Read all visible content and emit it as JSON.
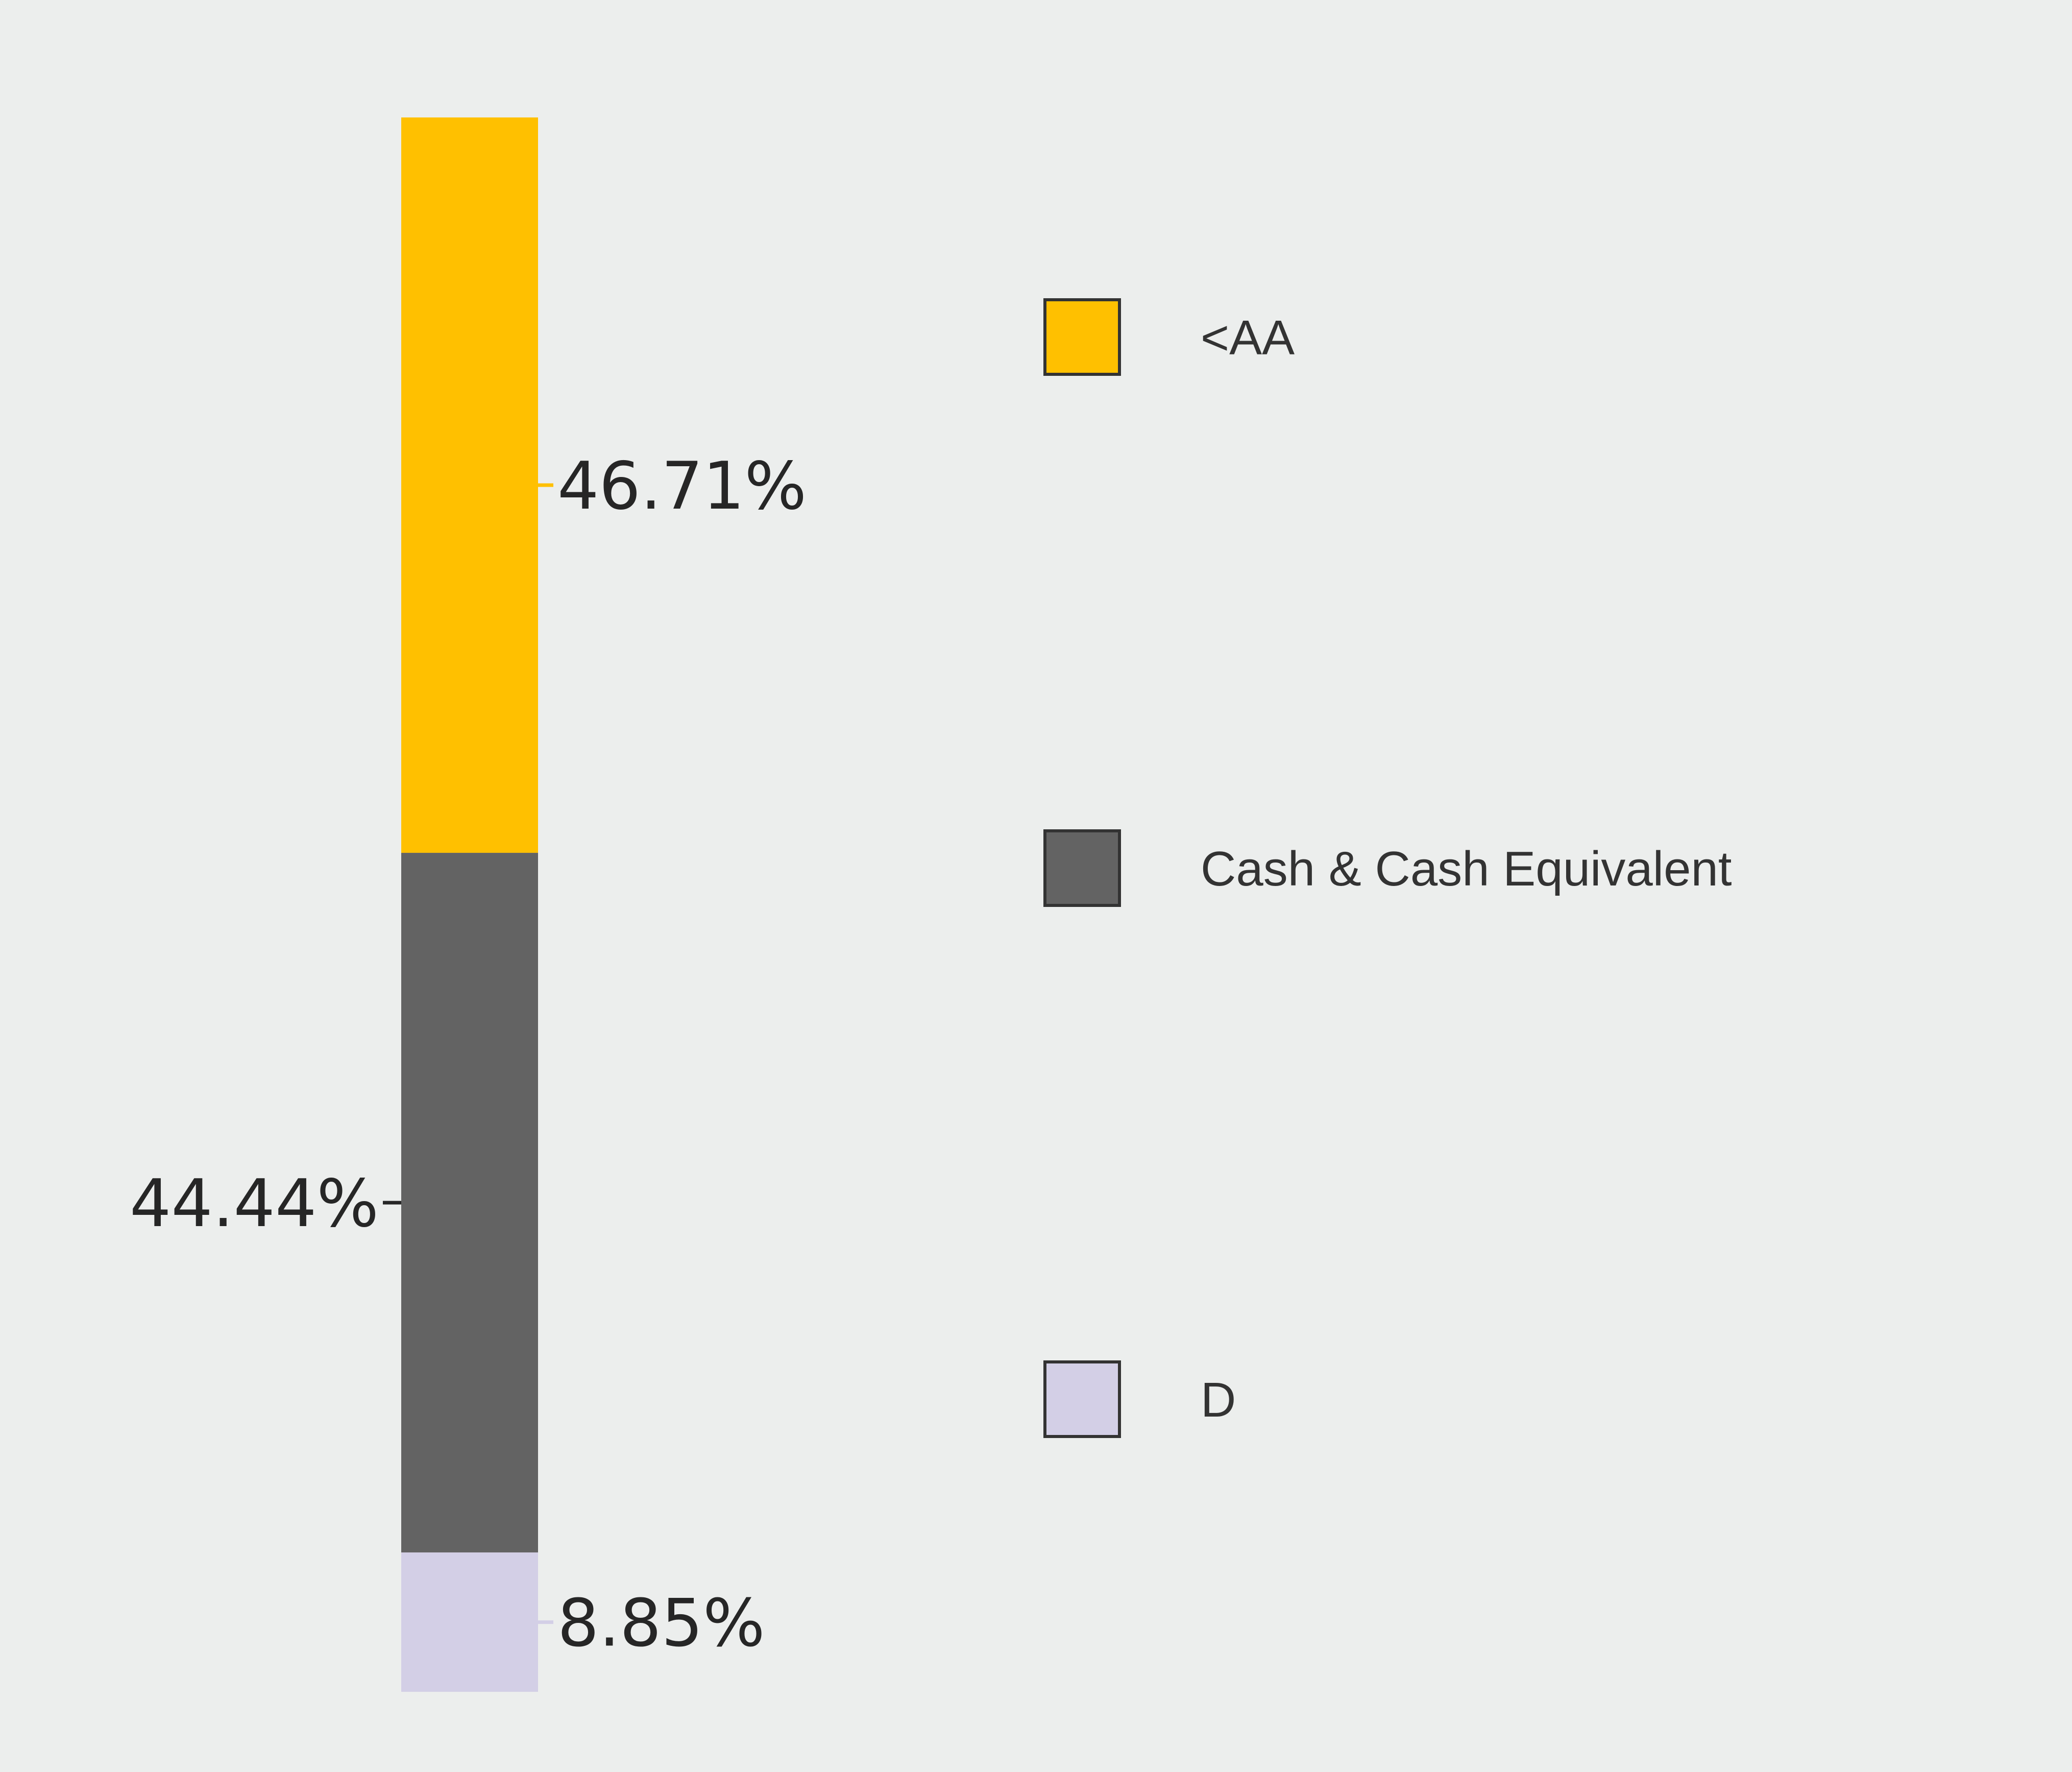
{
  "chart_data": {
    "type": "bar",
    "stacked": true,
    "orientation": "vertical",
    "categories": [
      ""
    ],
    "series": [
      {
        "name": "<AA",
        "values": [
          46.71
        ],
        "label": "46.71%",
        "color": "#ffc000"
      },
      {
        "name": "Cash & Cash Equivalent",
        "values": [
          44.44
        ],
        "label": "44.44%",
        "color": "#636363"
      },
      {
        "name": "D",
        "values": [
          8.85
        ],
        "label": "8.85%",
        "color": "#d3cfe6"
      }
    ],
    "unit": "%",
    "ylim": [
      0,
      100
    ],
    "grid": false,
    "legend": {
      "position": "right",
      "entries": [
        "<AA",
        "Cash & Cash Equivalent",
        "D"
      ]
    },
    "title": "",
    "xlabel": "",
    "ylabel": ""
  },
  "colors": {
    "background": "#eceeed",
    "text": "#262626",
    "legend_text": "#333333",
    "legend_border": "#333333"
  }
}
